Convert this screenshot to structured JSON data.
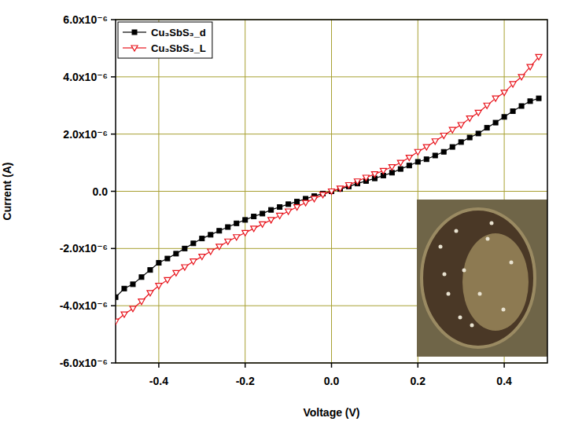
{
  "chart_data": {
    "type": "line",
    "x_label": "Voltage (V)",
    "y_label": "Current (A)",
    "x": [
      -0.5,
      -0.48,
      -0.46,
      -0.44,
      -0.42,
      -0.4,
      -0.38,
      -0.36,
      -0.34,
      -0.32,
      -0.3,
      -0.28,
      -0.26,
      -0.24,
      -0.22,
      -0.2,
      -0.18,
      -0.16,
      -0.14,
      -0.12,
      -0.1,
      -0.08,
      -0.06,
      -0.04,
      -0.02,
      0,
      0.02,
      0.04,
      0.06,
      0.08,
      0.1,
      0.12,
      0.14,
      0.16,
      0.18,
      0.2,
      0.22,
      0.24,
      0.26,
      0.28,
      0.3,
      0.32,
      0.34,
      0.36,
      0.38,
      0.4,
      0.42,
      0.44,
      0.46,
      0.48
    ],
    "series": [
      {
        "name": "Cu₃SbS₃_d",
        "color": "#000000",
        "marker": "square",
        "line_style": "solid",
        "values": [
          -3.7e-06,
          -3.4e-06,
          -3.25e-06,
          -3e-06,
          -2.75e-06,
          -2.5e-06,
          -2.35e-06,
          -2.18e-06,
          -2e-06,
          -1.82e-06,
          -1.65e-06,
          -1.52e-06,
          -1.38e-06,
          -1.25e-06,
          -1.12e-06,
          -1e-06,
          -8.8e-07,
          -7.8e-07,
          -6.5e-07,
          -5.5e-07,
          -4.5e-07,
          -3.6e-07,
          -2.6e-07,
          -1.7e-07,
          -8e-08,
          0,
          8e-08,
          1.7e-07,
          2.7e-07,
          3.6e-07,
          4.5e-07,
          5.5e-07,
          6.5e-07,
          7.8e-07,
          9e-07,
          1.03e-06,
          1.12e-06,
          1.25e-06,
          1.38e-06,
          1.55e-06,
          1.72e-06,
          1.88e-06,
          2.02e-06,
          2.22e-06,
          2.4e-06,
          2.6e-06,
          2.8e-06,
          2.98e-06,
          3.15e-06,
          3.25e-06
        ]
      },
      {
        "name": "Cu₃SbS₃_L",
        "color": "#e8141c",
        "marker": "triangle-down",
        "line_style": "solid",
        "values": [
          -4.55e-06,
          -4.3e-06,
          -4.1e-06,
          -3.85e-06,
          -3.55e-06,
          -3.3e-06,
          -3.1e-06,
          -2.85e-06,
          -2.65e-06,
          -2.45e-06,
          -2.28e-06,
          -2.1e-06,
          -1.93e-06,
          -1.75e-06,
          -1.6e-06,
          -1.45e-06,
          -1.3e-06,
          -1.15e-06,
          -1e-06,
          -8.5e-07,
          -7e-07,
          -5.5e-07,
          -4e-07,
          -2.6e-07,
          -1.2e-07,
          0,
          1e-07,
          2.2e-07,
          3.5e-07,
          4.8e-07,
          6e-07,
          7.2e-07,
          8.5e-07,
          1e-06,
          1.18e-06,
          1.38e-06,
          1.55e-06,
          1.75e-06,
          1.95e-06,
          2.15e-06,
          2.32e-06,
          2.55e-06,
          2.75e-06,
          3e-06,
          3.25e-06,
          3.45e-06,
          3.75e-06,
          4e-06,
          4.35e-06,
          4.7e-06
        ]
      }
    ],
    "xlim": [
      -0.5,
      0.5
    ],
    "xticks": [
      -0.4,
      -0.2,
      {
        "value": 0,
        "label": "0.0"
      },
      0.2,
      0.4
    ],
    "ylim": [
      -6e-06,
      6e-06
    ],
    "yticks": [
      {
        "value": -6e-06,
        "label": "-6.0x10⁻⁶"
      },
      {
        "value": -4e-06,
        "label": "-4.0x10⁻⁶"
      },
      {
        "value": -2e-06,
        "label": "-2.0x10⁻⁶"
      },
      {
        "value": 0,
        "label": "0.0"
      },
      {
        "value": 2e-06,
        "label": "2.0x10⁻⁶"
      },
      {
        "value": 4e-06,
        "label": "4.0x10⁻⁶"
      },
      {
        "value": 6e-06,
        "label": "6.0x10⁻⁶"
      }
    ],
    "grid": true,
    "legend": "top-left"
  }
}
